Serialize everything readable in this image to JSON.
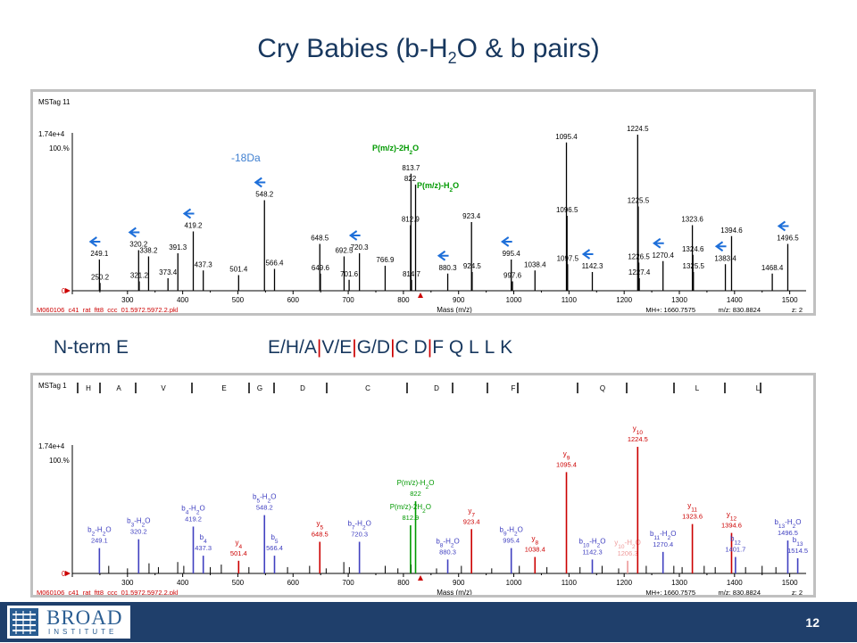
{
  "slide": {
    "title_main": "Cry Babies (b-H",
    "title_sub": "2",
    "title_rest": "O & b pairs)",
    "nterm_label": "N-term E",
    "page_number": "12"
  },
  "sequence": [
    {
      "c": "E"
    },
    {
      "c": "/",
      "sep": "slash"
    },
    {
      "c": "H"
    },
    {
      "c": "/",
      "sep": "slash"
    },
    {
      "c": "A"
    },
    {
      "c": "|",
      "sep": "bar"
    },
    {
      "c": "V"
    },
    {
      "c": "/",
      "sep": "slash"
    },
    {
      "c": "E"
    },
    {
      "c": "|",
      "sep": "bar"
    },
    {
      "c": "G"
    },
    {
      "c": "/",
      "sep": "slash"
    },
    {
      "c": "D"
    },
    {
      "c": "|",
      "sep": "bar"
    },
    {
      "c": "C"
    },
    {
      "c": " "
    },
    {
      "c": "D"
    },
    {
      "c": "|",
      "sep": "bar"
    },
    {
      "c": "F"
    },
    {
      "c": " "
    },
    {
      "c": "Q"
    },
    {
      "c": " "
    },
    {
      "c": "L"
    },
    {
      "c": " "
    },
    {
      "c": "L"
    },
    {
      "c": " "
    },
    {
      "c": "K"
    }
  ],
  "logo": {
    "name": "BROAD",
    "sub": "INSTITUTE"
  },
  "colors": {
    "title": "#17375e",
    "footer": "#1f3f6b",
    "b_ions": "#4040c0",
    "y_ions": "#cc0000",
    "precursor": "#009900",
    "arrows": "#1e6fd9",
    "peaks": "#000000"
  },
  "chart_data": [
    {
      "type": "spectrum",
      "panel_label": "MSTag 11",
      "x": [
        249.1,
        250.2,
        320.2,
        321.2,
        338.2,
        373.4,
        391.3,
        419.2,
        437.3,
        501.4,
        548.2,
        566.4,
        648.5,
        649.6,
        692.5,
        701.6,
        720.3,
        766.9,
        812.9,
        813.7,
        814.7,
        822,
        880.3,
        923.4,
        924.5,
        995.4,
        997.6,
        1038.4,
        1095.4,
        1096.5,
        1097.5,
        1142.3,
        1224.5,
        1225.5,
        1226.5,
        1227.4,
        1270.4,
        1323.6,
        1324.6,
        1325.5,
        1383.4,
        1394.6,
        1468.4,
        1496.5
      ],
      "y": [
        20,
        5,
        26,
        6,
        22,
        8,
        24,
        38,
        13,
        10,
        58,
        14,
        30,
        11,
        22,
        7,
        24,
        16,
        42,
        75,
        7,
        68,
        11,
        44,
        12,
        20,
        6,
        13,
        95,
        48,
        17,
        12,
        100,
        54,
        18,
        8,
        19,
        42,
        23,
        12,
        17,
        35,
        11,
        30
      ],
      "peak_labels": [
        "249.1",
        "250.2",
        "320.2",
        "321.2",
        "338.2",
        "373.4",
        "391.3",
        "419.2",
        "437.3",
        "501.4",
        "548.2",
        "566.4",
        "648.5",
        "649.6",
        "692.5",
        "701.6",
        "720.3",
        "766.9",
        "812.9",
        "813.7",
        "814.7",
        "822",
        "880.3",
        "923.4",
        "924.5",
        "995.4",
        "997.6",
        "1038.4",
        "1095.4",
        "1096.5",
        "1097.5",
        "1142.3",
        "1224.5",
        "1225.5",
        "1226.5",
        "1227.4",
        "1270.4",
        "1323.6",
        "1324.6",
        "1325.5",
        "1383.4",
        "1394.6",
        "1468.4",
        "1496.5"
      ],
      "annotations": [
        {
          "text": "-18Da",
          "color": "#3f7fd0"
        },
        {
          "text": "P(m/z)-2H",
          "sub": "2",
          "rest": "O",
          "color": "#009900",
          "anchor_x": 813.7
        },
        {
          "text": "P(m/z)-H",
          "sub": "2",
          "rest": "O",
          "color": "#009900",
          "anchor_x": 822
        }
      ],
      "arrow_x": [
        249.1,
        320.2,
        419.2,
        548.2,
        720.3,
        880.3,
        995.4,
        1142.3,
        1270.4,
        1383.4,
        1496.5
      ],
      "xlim": [
        200,
        1520
      ],
      "ylim": [
        0,
        100
      ],
      "xticks": [
        300,
        400,
        500,
        600,
        700,
        800,
        900,
        1000,
        1100,
        1200,
        1300,
        1400,
        1500
      ],
      "xlabel": "Mass (m/z)",
      "y_top_label": "1.74e+4",
      "y_pct_label": "100.%",
      "y_zero": "0",
      "file": "M060106_c41_rat_ftt8_ccc_01.5972.5972.2.pkl",
      "mh": "MH+: 1660.7575",
      "mz": "m/z: 830.8824",
      "z": "z: 2"
    },
    {
      "type": "annotated_spectrum",
      "panel_label": "MSTag 1",
      "seq_letters": [
        "H",
        "A",
        "V",
        "E",
        "G",
        "D",
        "C",
        "D",
        "F",
        "Q",
        "L",
        "L"
      ],
      "peaks": [
        {
          "x": 249.1,
          "y": 20,
          "color": "#4040c0",
          "label": "b2-H2O",
          "ion": "b",
          "n": "2",
          "h2o": true,
          "val": "249.1"
        },
        {
          "x": 320.2,
          "y": 27,
          "color": "#4040c0",
          "label": "b3-H2O",
          "ion": "b",
          "n": "3",
          "h2o": true,
          "val": "320.2"
        },
        {
          "x": 419.2,
          "y": 37,
          "color": "#4040c0",
          "label": "b4-H2O",
          "ion": "b",
          "n": "4",
          "h2o": true,
          "val": "419.2"
        },
        {
          "x": 437.3,
          "y": 14,
          "color": "#4040c0",
          "label": "b4",
          "ion": "b",
          "n": "4",
          "h2o": false,
          "val": "437.3"
        },
        {
          "x": 501.4,
          "y": 10,
          "color": "#cc0000",
          "label": "y4",
          "ion": "y",
          "n": "4",
          "h2o": false,
          "val": "501.4"
        },
        {
          "x": 548.2,
          "y": 46,
          "color": "#4040c0",
          "label": "b5-H2O",
          "ion": "b",
          "n": "5",
          "h2o": true,
          "val": "548.2"
        },
        {
          "x": 566.4,
          "y": 14,
          "color": "#4040c0",
          "label": "b5",
          "ion": "b",
          "n": "5",
          "h2o": false,
          "val": "566.4"
        },
        {
          "x": 648.5,
          "y": 25,
          "color": "#cc0000",
          "label": "y5",
          "ion": "y",
          "n": "5",
          "h2o": false,
          "val": "648.5"
        },
        {
          "x": 720.3,
          "y": 25,
          "color": "#4040c0",
          "label": "b7-H2O",
          "ion": "b",
          "n": "7",
          "h2o": true,
          "val": "720.3"
        },
        {
          "x": 812.9,
          "y": 38,
          "color": "#009900",
          "label": "P(m/z)-2H2O",
          "ion": "P",
          "n": "",
          "h2o": false,
          "val": "812.9"
        },
        {
          "x": 822,
          "y": 57,
          "color": "#009900",
          "label": "P(m/z)-H2O",
          "ion": "P",
          "n": "",
          "h2o": false,
          "val": "822"
        },
        {
          "x": 880.3,
          "y": 11,
          "color": "#4040c0",
          "label": "b8-H2O",
          "ion": "b",
          "n": "8",
          "h2o": true,
          "val": "880.3"
        },
        {
          "x": 923.4,
          "y": 35,
          "color": "#cc0000",
          "label": "y7",
          "ion": "y",
          "n": "7",
          "h2o": false,
          "val": "923.4"
        },
        {
          "x": 995.4,
          "y": 20,
          "color": "#4040c0",
          "label": "b9-H2O",
          "ion": "b",
          "n": "9",
          "h2o": true,
          "val": "995.4"
        },
        {
          "x": 1038.4,
          "y": 13,
          "color": "#cc0000",
          "label": "y8",
          "ion": "y",
          "n": "8",
          "h2o": false,
          "val": "1038.4"
        },
        {
          "x": 1095.4,
          "y": 80,
          "color": "#cc0000",
          "label": "y9",
          "ion": "y",
          "n": "9",
          "h2o": false,
          "val": "1095.4"
        },
        {
          "x": 1142.3,
          "y": 11,
          "color": "#4040c0",
          "label": "b10-H2O",
          "ion": "b",
          "n": "10",
          "h2o": true,
          "val": "1142.3"
        },
        {
          "x": 1206.3,
          "y": 10,
          "color": "#ee9999",
          "label": "y10-H2O",
          "ion": "y",
          "n": "10",
          "h2o": true,
          "val": "1206.3"
        },
        {
          "x": 1224.5,
          "y": 100,
          "color": "#cc0000",
          "label": "y10",
          "ion": "y",
          "n": "10",
          "h2o": false,
          "val": "1224.5"
        },
        {
          "x": 1270.4,
          "y": 17,
          "color": "#4040c0",
          "label": "b11-H2O",
          "ion": "b",
          "n": "11",
          "h2o": true,
          "val": "1270.4"
        },
        {
          "x": 1323.6,
          "y": 39,
          "color": "#cc0000",
          "label": "y11",
          "ion": "y",
          "n": "11",
          "h2o": false,
          "val": "1323.6"
        },
        {
          "x": 1394.6,
          "y": 32,
          "color": "#cc0000",
          "label": "y12",
          "ion": "y",
          "n": "12",
          "h2o": false,
          "val": "1394.6"
        },
        {
          "x": 1401.7,
          "y": 13,
          "color": "#4040c0",
          "label": "b12",
          "ion": "b",
          "n": "12",
          "h2o": false,
          "val": "1401.7"
        },
        {
          "x": 1496.5,
          "y": 26,
          "color": "#4040c0",
          "label": "b13-H2O",
          "ion": "b",
          "n": "13",
          "h2o": true,
          "val": "1496.5"
        },
        {
          "x": 1514.5,
          "y": 12,
          "color": "#4040c0",
          "label": "b13",
          "ion": "b",
          "n": "13",
          "h2o": false,
          "val": "1514.5"
        }
      ],
      "minor_peaks": [
        {
          "x": 266,
          "y": 6
        },
        {
          "x": 300,
          "y": 4
        },
        {
          "x": 339,
          "y": 8
        },
        {
          "x": 356,
          "y": 5
        },
        {
          "x": 391,
          "y": 9
        },
        {
          "x": 402,
          "y": 6
        },
        {
          "x": 450,
          "y": 5
        },
        {
          "x": 470,
          "y": 7
        },
        {
          "x": 520,
          "y": 5
        },
        {
          "x": 590,
          "y": 5
        },
        {
          "x": 630,
          "y": 6
        },
        {
          "x": 660,
          "y": 4
        },
        {
          "x": 692,
          "y": 9
        },
        {
          "x": 702,
          "y": 5
        },
        {
          "x": 767,
          "y": 6
        },
        {
          "x": 790,
          "y": 4
        },
        {
          "x": 814,
          "y": 7
        },
        {
          "x": 860,
          "y": 4
        },
        {
          "x": 905,
          "y": 6
        },
        {
          "x": 960,
          "y": 4
        },
        {
          "x": 1010,
          "y": 6
        },
        {
          "x": 1060,
          "y": 5
        },
        {
          "x": 1120,
          "y": 5
        },
        {
          "x": 1160,
          "y": 6
        },
        {
          "x": 1190,
          "y": 4
        },
        {
          "x": 1240,
          "y": 6
        },
        {
          "x": 1290,
          "y": 6
        },
        {
          "x": 1305,
          "y": 5
        },
        {
          "x": 1345,
          "y": 6
        },
        {
          "x": 1365,
          "y": 5
        },
        {
          "x": 1420,
          "y": 5
        },
        {
          "x": 1450,
          "y": 6
        },
        {
          "x": 1475,
          "y": 5
        }
      ],
      "xlim": [
        200,
        1520
      ],
      "ylim": [
        0,
        100
      ],
      "xticks": [
        300,
        400,
        500,
        600,
        700,
        800,
        900,
        1000,
        1100,
        1200,
        1300,
        1400,
        1500
      ],
      "xlabel": "Mass (m/z)",
      "y_top_label": "1.74e+4",
      "y_pct_label": "100.%",
      "y_zero": "0",
      "file": "M060106_c41_rat_ftt8_ccc_01.5972.5972.2.pkl",
      "mh": "MH+: 1660.7575",
      "mz": "m/z: 830.8824",
      "z": "z: 2"
    }
  ]
}
